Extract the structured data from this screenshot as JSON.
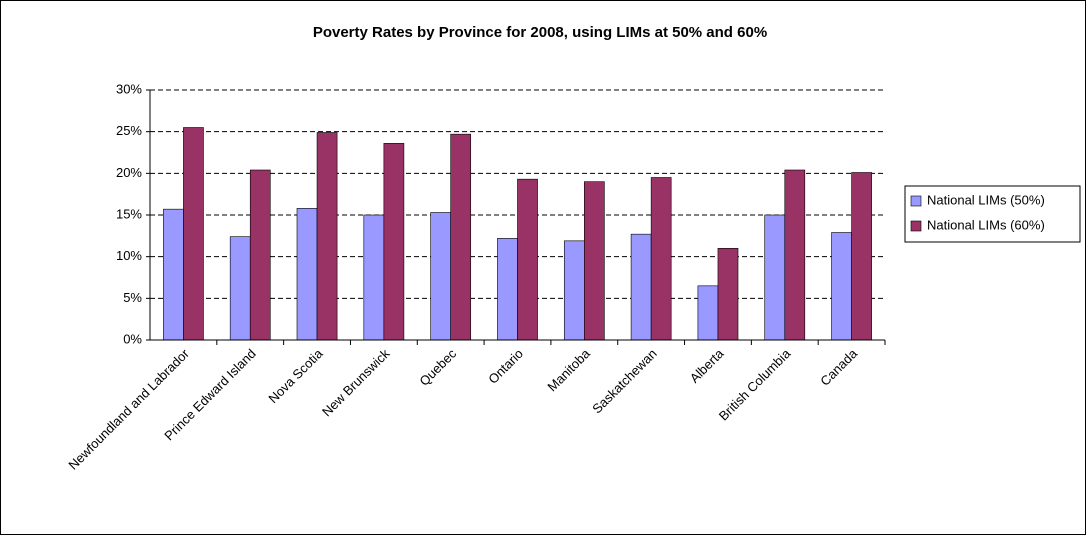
{
  "chart_data": {
    "type": "bar",
    "title": "Poverty Rates by Province for 2008, using LIMs at 50% and 60%",
    "categories": [
      "Newfoundland and Labrador",
      "Prince Edward Island",
      "Nova Scotia",
      "New Brunswick",
      "Quebec",
      "Ontario",
      "Manitoba",
      "Saskatchewan",
      "Alberta",
      "British Columbia",
      "Canada"
    ],
    "series": [
      {
        "name": "National LIMs (50%)",
        "color": "#9999ff",
        "values": [
          15.7,
          12.4,
          15.8,
          15.0,
          15.3,
          12.2,
          11.9,
          12.7,
          6.5,
          15.0,
          12.9
        ]
      },
      {
        "name": "National LIMs (60%)",
        "color": "#993366",
        "values": [
          25.5,
          20.4,
          24.9,
          23.6,
          24.7,
          19.3,
          19.0,
          19.5,
          11.0,
          20.4,
          20.1
        ]
      }
    ],
    "ylim": [
      0,
      30
    ],
    "yticks": [
      {
        "value": 0,
        "label": "0%"
      },
      {
        "value": 5,
        "label": "5%"
      },
      {
        "value": 10,
        "label": "10%"
      },
      {
        "value": 15,
        "label": "15%"
      },
      {
        "value": 20,
        "label": "20%"
      },
      {
        "value": 25,
        "label": "25%"
      },
      {
        "value": 30,
        "label": "30%"
      }
    ],
    "grid": true,
    "legend": "right"
  }
}
